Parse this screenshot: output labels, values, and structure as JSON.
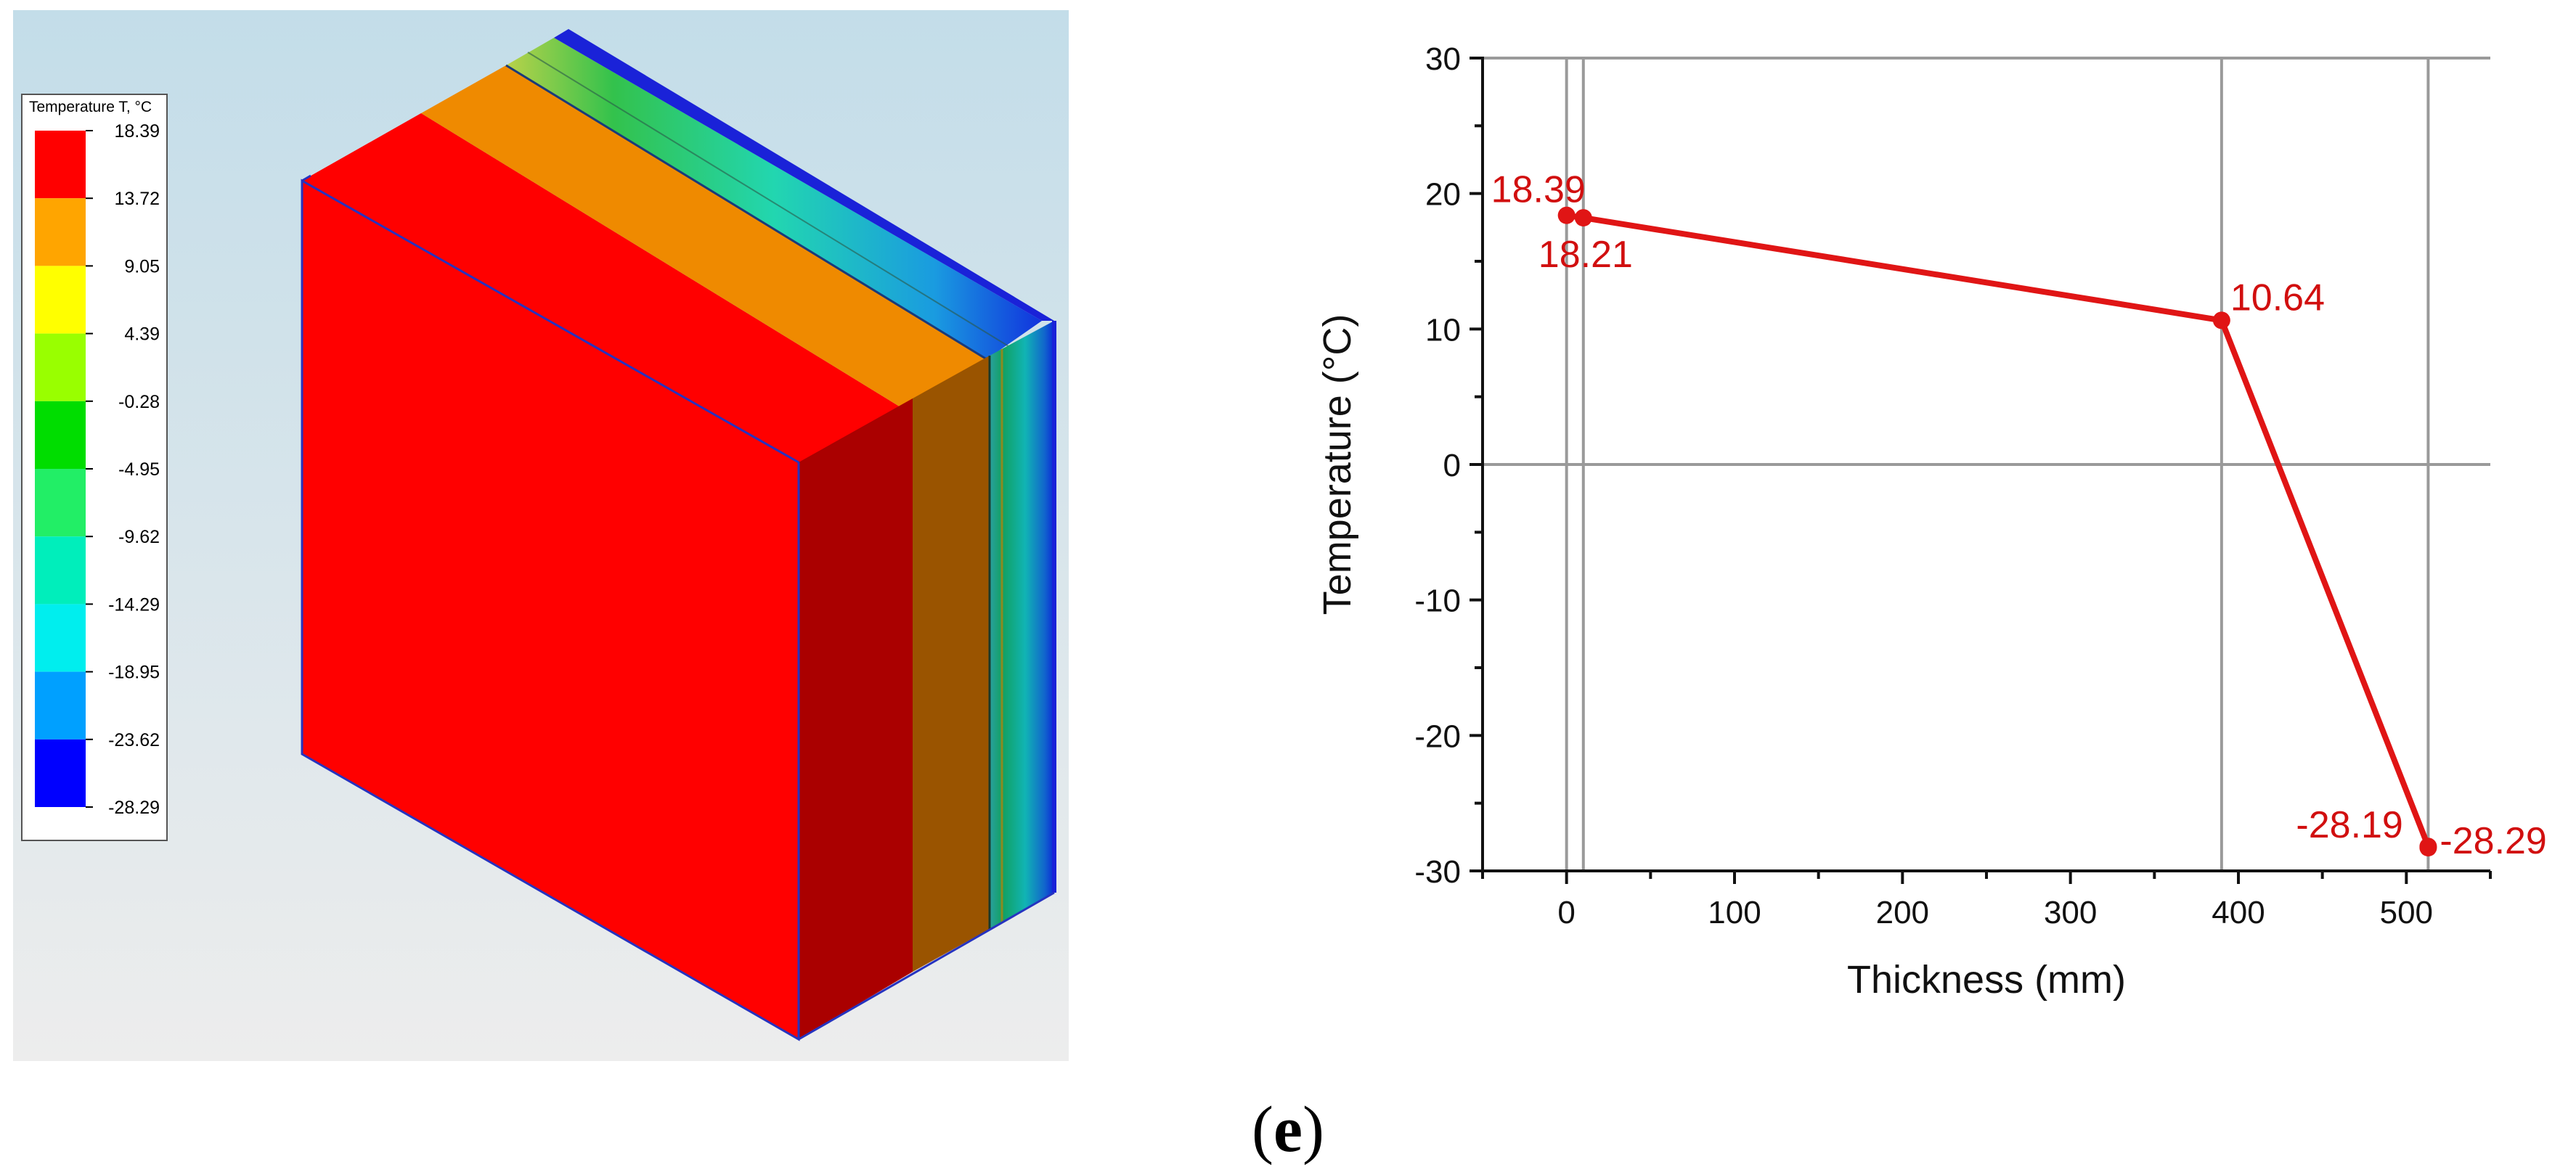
{
  "simulation": {
    "legend": {
      "title": "Temperature T, °C",
      "values": [
        "18.39",
        "13.72",
        "9.05",
        "4.39",
        "-0.28",
        "-4.95",
        "-9.62",
        "-14.29",
        "-18.95",
        "-23.62",
        "-28.29"
      ],
      "colors": [
        "#ff0000",
        "#ffa500",
        "#ffff00",
        "#99ff00",
        "#00dd00",
        "#22ee66",
        "#00eebb",
        "#00eeee",
        "#00a0ff",
        "#0000ff"
      ]
    }
  },
  "chart_data": {
    "type": "line",
    "xlabel": "Thickness (mm)",
    "ylabel": "Temperature (°C)",
    "xlim": [
      -50,
      550
    ],
    "ylim": [
      -30,
      30
    ],
    "xticks": [
      0,
      100,
      200,
      300,
      400,
      500
    ],
    "yticks": [
      30,
      20,
      10,
      0,
      -10,
      -20,
      -30
    ],
    "grid_x": [
      0,
      10,
      390,
      513
    ],
    "grid_y": [
      0
    ],
    "series": [
      {
        "color": "#e01515",
        "points": [
          {
            "x": 0,
            "y": 18.39,
            "label": "18.39"
          },
          {
            "x": 10,
            "y": 18.21,
            "label": "18.21"
          },
          {
            "x": 390,
            "y": 10.64,
            "label": "10.64"
          },
          {
            "x": 513,
            "y": -28.19,
            "label": "-28.19"
          },
          {
            "x": 513,
            "y": -28.29,
            "label": "-28.29"
          }
        ]
      }
    ]
  },
  "caption": {
    "open": "(",
    "letter": "e",
    "close": ")"
  }
}
